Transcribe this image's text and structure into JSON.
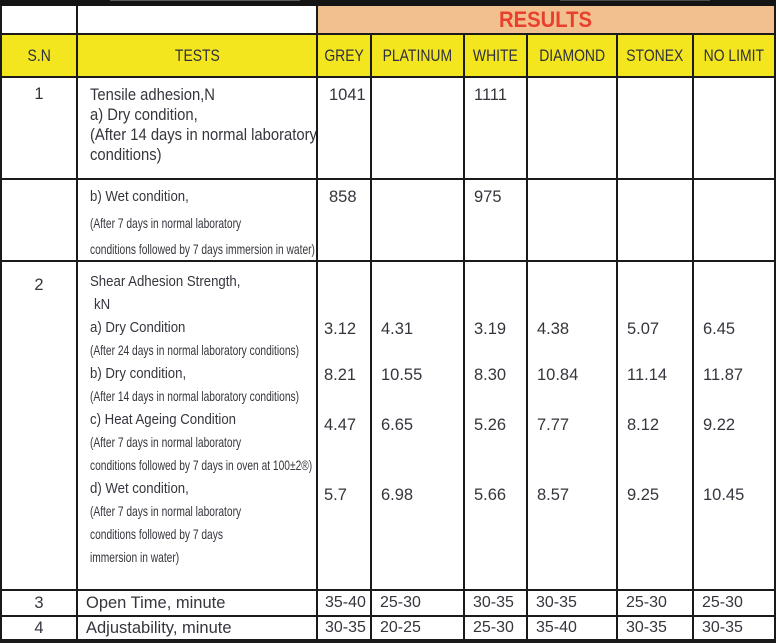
{
  "header": {
    "results": "RESULTS",
    "columns": [
      "S.N",
      "TESTS",
      "GREY",
      "PLATINUM",
      "WHITE",
      "DIAMOND",
      "STONEX",
      "NO LIMIT"
    ]
  },
  "row1": {
    "sn": "1",
    "lines": [
      "Tensile adhesion,N",
      "a) Dry condition,",
      "(After 14 days in normal laboratory",
      "conditions)"
    ],
    "grey": "1041",
    "white": "1111"
  },
  "row1b": {
    "lines": [
      "b) Wet condition,",
      "(After 7 days in normal laboratory",
      "conditions followed by 7 days immersion in water)"
    ],
    "grey": "858",
    "white": "975"
  },
  "row2": {
    "sn": "2",
    "lines": [
      "Shear Adhesion Strength,",
      "kN",
      "a) Dry Condition",
      "(After 24 days in normal laboratory conditions)",
      "b) Dry condition,",
      "(After 14 days in normal laboratory conditions)",
      "c) Heat Ageing Condition",
      "(After 7 days in normal laboratory",
      "conditions followed by 7 days in oven at 100±2®)",
      "d) Wet condition,",
      "(After 7 days in normal laboratory",
      "conditions followed by 7 days",
      "immersion in water)"
    ],
    "values": {
      "a": [
        "3.12",
        "4.31",
        "3.19",
        "4.38",
        "5.07",
        "6.45"
      ],
      "b": [
        "8.21",
        "10.55",
        "8.30",
        "10.84",
        "11.14",
        "11.87"
      ],
      "c": [
        "4.47",
        "6.65",
        "5.26",
        "7.77",
        "8.12",
        "9.22"
      ],
      "d": [
        "5.7",
        "6.98",
        "5.66",
        "8.57",
        "9.25",
        "10.45"
      ]
    }
  },
  "row3": {
    "sn": "3",
    "label": "Open Time, minute",
    "values": [
      "35-40",
      "25-30",
      "30-35",
      "30-35",
      "25-30",
      "25-30"
    ]
  },
  "row4": {
    "sn": "4",
    "label": "Adjustability, minute",
    "values": [
      "30-35",
      "20-25",
      "25-30",
      "35-40",
      "30-35",
      "30-35"
    ]
  },
  "colors": {
    "yellow": "#f3e61f",
    "peach": "#f2c08e",
    "red": "#e8402d",
    "border": "#1a1a1a",
    "text": "#35353d"
  }
}
